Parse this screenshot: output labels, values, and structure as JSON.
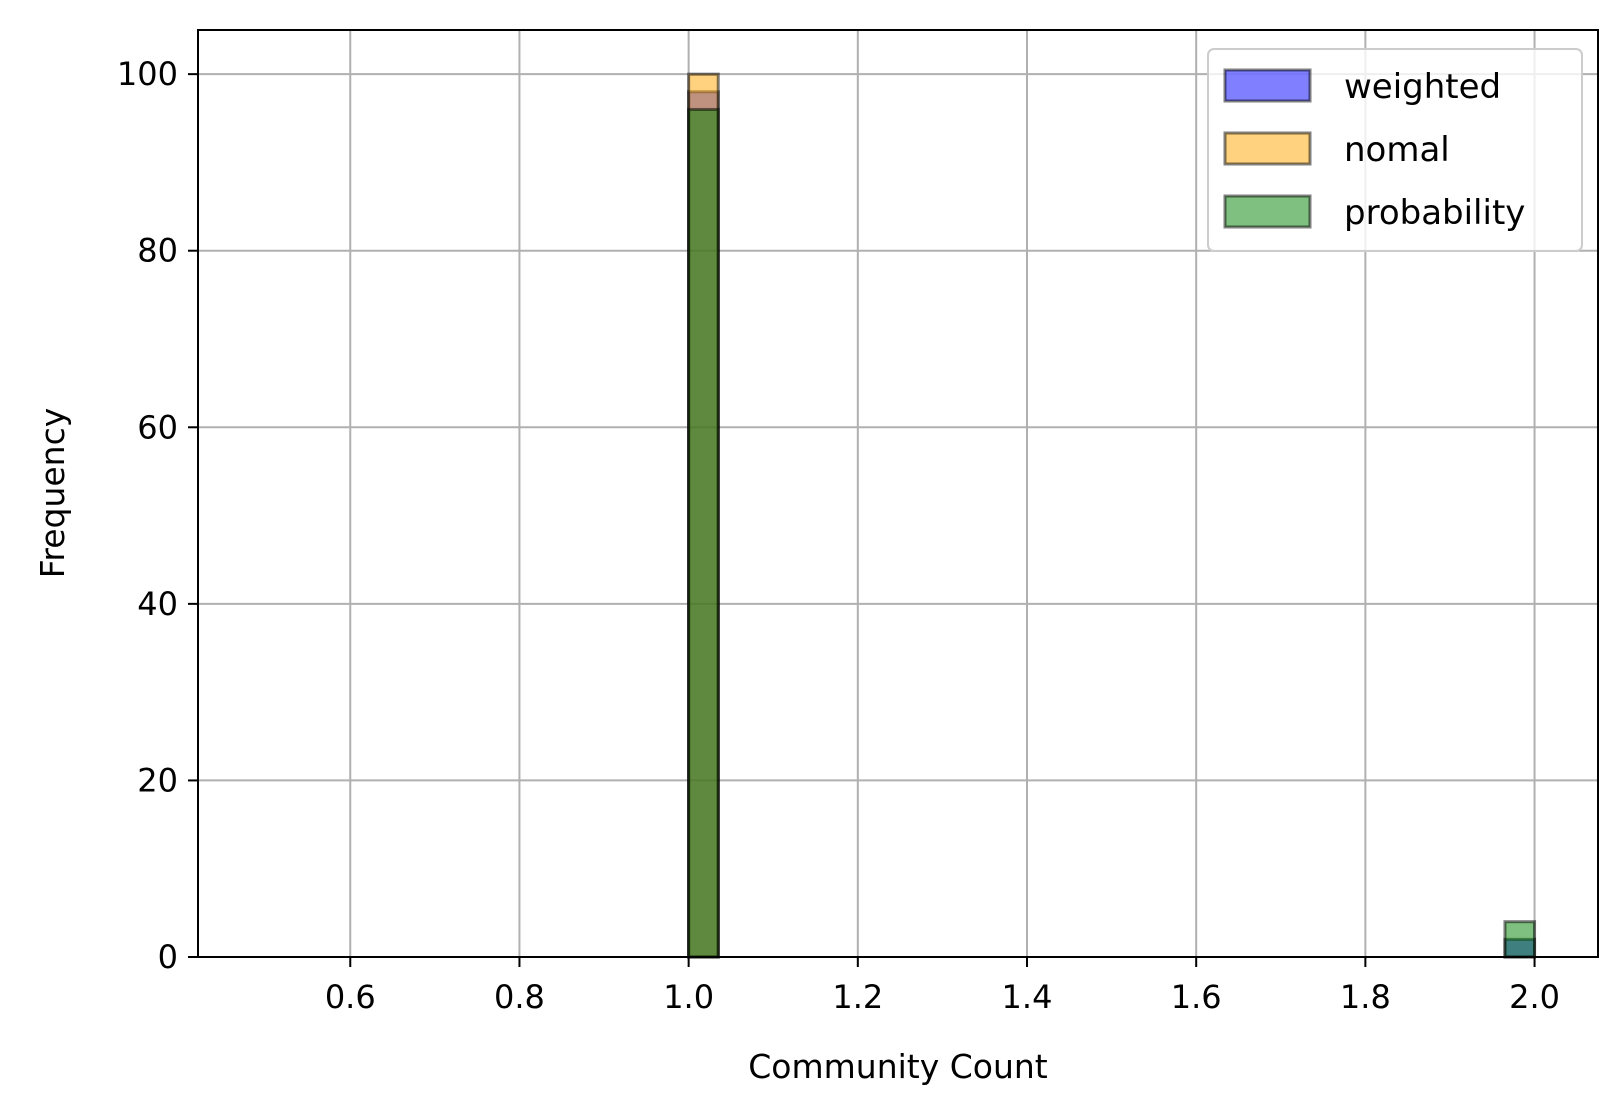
{
  "chart_data": {
    "type": "histogram",
    "xlabel": "Community Count",
    "ylabel": "Frequency",
    "xlim": [
      0.42,
      2.075
    ],
    "ylim": [
      0,
      105
    ],
    "xticks": [
      0.6,
      0.8,
      1.0,
      1.2,
      1.4,
      1.6,
      1.8,
      2.0
    ],
    "xtick_labels": [
      "0.6",
      "0.8",
      "1.0",
      "1.2",
      "1.4",
      "1.6",
      "1.8",
      "2.0"
    ],
    "yticks": [
      0,
      20,
      40,
      60,
      80,
      100
    ],
    "ytick_labels": [
      "0",
      "20",
      "40",
      "60",
      "80",
      "100"
    ],
    "grid": true,
    "legend_position": "top-right",
    "series": [
      {
        "name": "weighted",
        "color": "#0000ff",
        "bars": [
          {
            "x0": 0.5,
            "x1": 1.0,
            "height": 0
          },
          {
            "x0": 1.0,
            "x1": 1.035,
            "height": 98
          },
          {
            "x0": 1.035,
            "x1": 1.965,
            "height": 0
          },
          {
            "x0": 1.965,
            "x1": 2.0,
            "height": 2
          }
        ]
      },
      {
        "name": "nomal",
        "color": "#ffa500",
        "bars": [
          {
            "x0": 0.5,
            "x1": 1.0,
            "height": 0
          },
          {
            "x0": 1.0,
            "x1": 1.035,
            "height": 100
          },
          {
            "x0": 1.035,
            "x1": 1.5,
            "height": 0
          }
        ]
      },
      {
        "name": "probability",
        "color": "#008000",
        "bars": [
          {
            "x0": 1.0,
            "x1": 1.035,
            "height": 96
          },
          {
            "x0": 1.035,
            "x1": 1.965,
            "height": 0
          },
          {
            "x0": 1.965,
            "x1": 2.0,
            "height": 4
          }
        ]
      }
    ]
  }
}
